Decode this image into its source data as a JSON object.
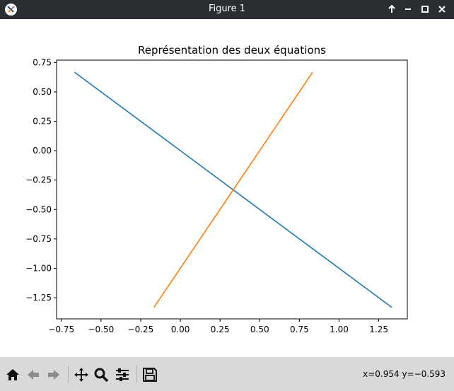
{
  "window": {
    "title": "Figure 1"
  },
  "status": {
    "coords": "x=0.954 y=−0.593"
  },
  "toolbar": {
    "tools": [
      "home-icon",
      "back-icon",
      "forward-icon",
      "pan-icon",
      "zoom-icon",
      "configure-subplots-icon",
      "save-icon"
    ]
  },
  "chart_data": {
    "type": "line",
    "title": "Représentation des deux équations",
    "xlabel": "",
    "ylabel": "",
    "xlim": [
      -0.78,
      1.43
    ],
    "ylim": [
      -1.43,
      0.77
    ],
    "xticks": [
      -0.75,
      -0.5,
      -0.25,
      0.0,
      0.25,
      0.5,
      0.75,
      1.0,
      1.25
    ],
    "xtick_labels": [
      "−0.75",
      "−0.50",
      "−0.25",
      "0.00",
      "0.25",
      "0.50",
      "0.75",
      "1.00",
      "1.25"
    ],
    "yticks": [
      0.75,
      0.5,
      0.25,
      0.0,
      -0.25,
      -0.5,
      -0.75,
      -1.0,
      -1.25
    ],
    "ytick_labels": [
      "0.75",
      "0.50",
      "0.25",
      "0.00",
      "−0.25",
      "−0.50",
      "−0.75",
      "−1.00",
      "−1.25"
    ],
    "grid": false,
    "series": [
      {
        "color": "#1f77b4",
        "x": [
          -0.667,
          1.333
        ],
        "y": [
          0.667,
          -1.333
        ]
      },
      {
        "color": "#ff7f0e",
        "x": [
          -0.167,
          0.833
        ],
        "y": [
          -1.333,
          0.667
        ]
      }
    ]
  }
}
